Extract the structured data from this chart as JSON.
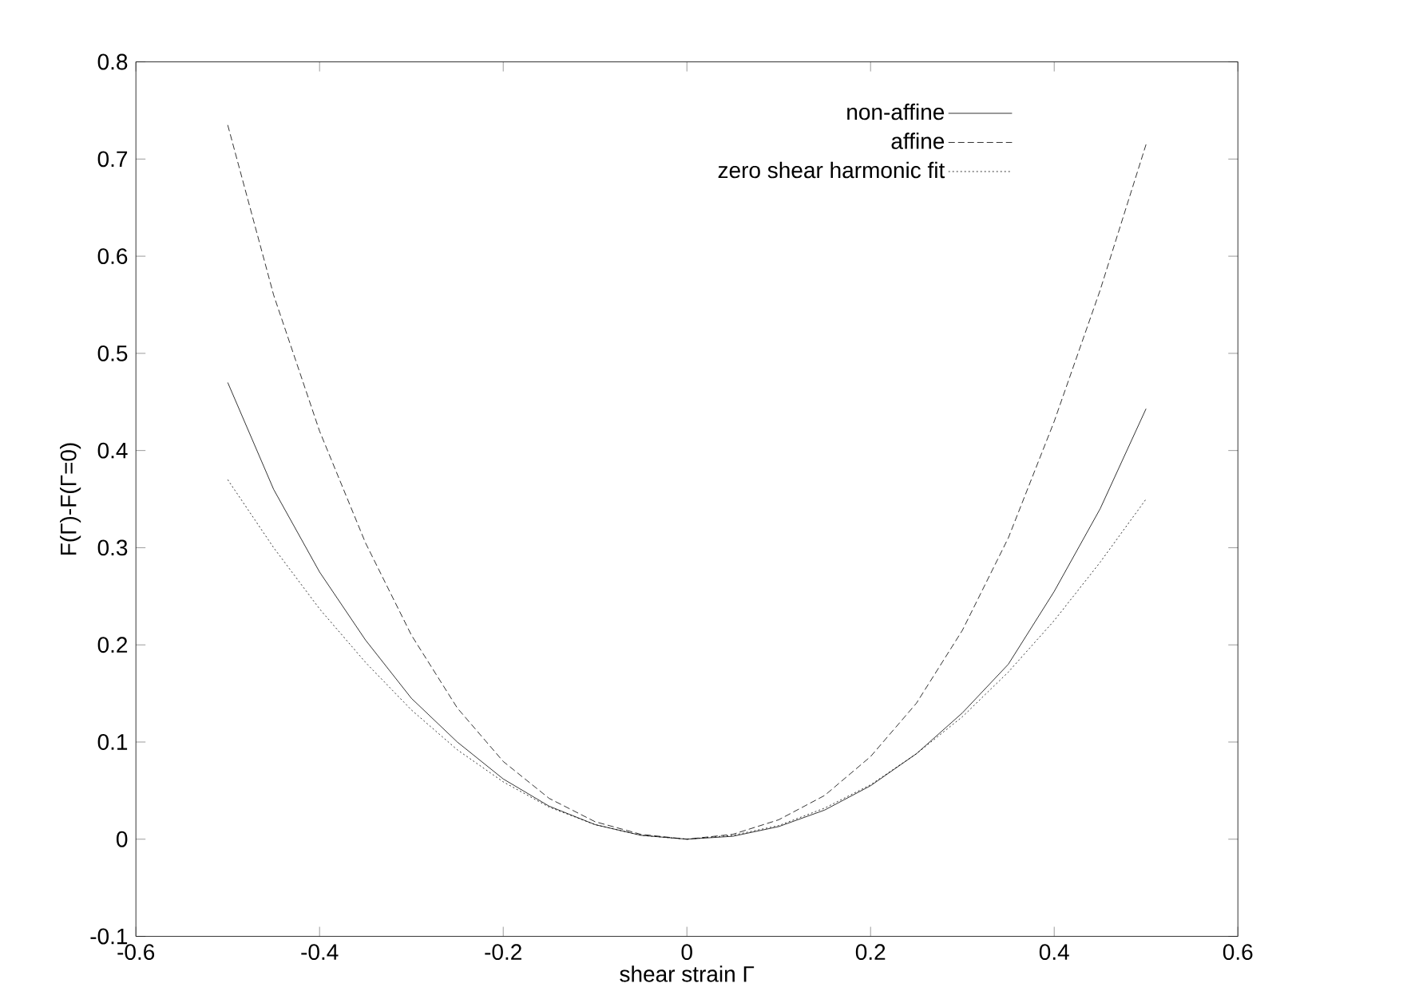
{
  "chart_data": {
    "type": "line",
    "xlabel": "shear strain Γ",
    "ylabel": "F(Γ)-F(Γ=0)",
    "xlim": [
      -0.6,
      0.6
    ],
    "ylim": [
      -0.1,
      0.8
    ],
    "xticks": [
      -0.6,
      -0.4,
      -0.2,
      0,
      0.2,
      0.4,
      0.6
    ],
    "yticks": [
      -0.1,
      0,
      0.1,
      0.2,
      0.3,
      0.4,
      0.5,
      0.6,
      0.7,
      0.8
    ],
    "x": [
      -0.5,
      -0.45,
      -0.4,
      -0.35,
      -0.3,
      -0.25,
      -0.2,
      -0.15,
      -0.1,
      -0.05,
      0,
      0.05,
      0.1,
      0.15,
      0.2,
      0.25,
      0.3,
      0.35,
      0.4,
      0.45,
      0.5
    ],
    "legend": "top right",
    "grid": false,
    "marker": "none",
    "series": [
      {
        "name": "non-affine",
        "color": "#000000",
        "line_style": "solid",
        "values": [
          0.47,
          0.36,
          0.275,
          0.205,
          0.145,
          0.1,
          0.062,
          0.034,
          0.015,
          0.004,
          0,
          0.003,
          0.013,
          0.03,
          0.055,
          0.088,
          0.13,
          0.18,
          0.255,
          0.34,
          0.443
        ]
      },
      {
        "name": "affine",
        "color": "#000000",
        "line_style": "dashed",
        "values": [
          0.735,
          0.56,
          0.42,
          0.305,
          0.21,
          0.135,
          0.08,
          0.042,
          0.018,
          0.005,
          0,
          0.005,
          0.02,
          0.045,
          0.085,
          0.14,
          0.215,
          0.31,
          0.43,
          0.565,
          0.715
        ]
      },
      {
        "name": "zero shear harmonic fit",
        "color": "#000000",
        "line_style": "dotted",
        "values": [
          0.37,
          0.3,
          0.237,
          0.182,
          0.133,
          0.092,
          0.059,
          0.033,
          0.015,
          0.004,
          0,
          0.004,
          0.014,
          0.032,
          0.056,
          0.088,
          0.126,
          0.172,
          0.225,
          0.285,
          0.35
        ]
      }
    ]
  }
}
